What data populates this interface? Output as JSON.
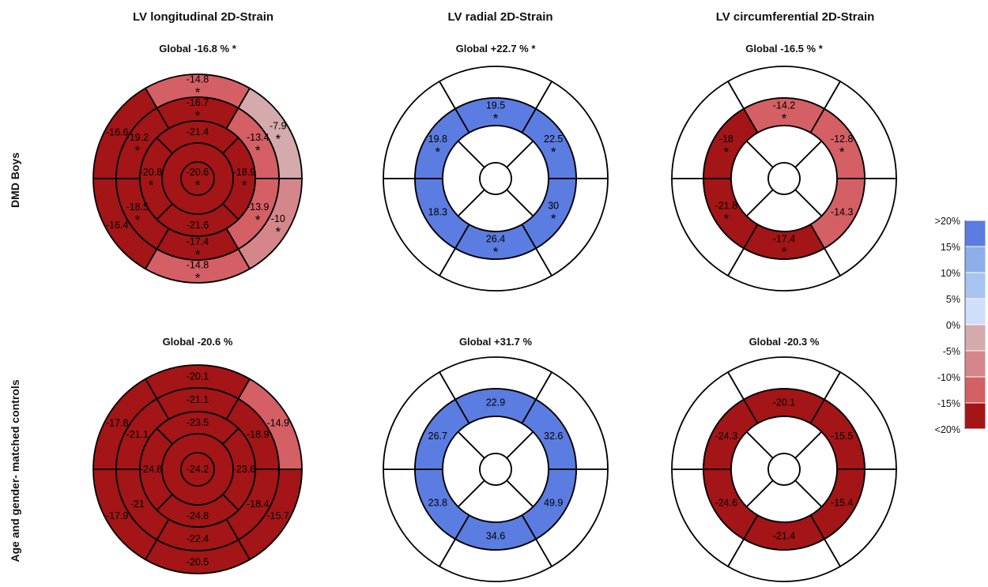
{
  "column_titles": [
    "LV longitudinal 2D-Strain",
    "LV radial 2D-Strain",
    "LV circumferential 2D-Strain"
  ],
  "row_labels": [
    "DMD Boys",
    "Age and gender- matched controls"
  ],
  "colors": {
    "lt20": "#a31516",
    "m15": "#d45f64",
    "m10": "#d4868a",
    "m5": "#d4aaac",
    "p5": "#cfdffb",
    "p10": "#a8c4f2",
    "p15": "#8caee9",
    "p20": "#5b7ce0",
    "empty": "#ffffff",
    "stroke": "#000000"
  },
  "color_scale": {
    "labels": [
      ">20%",
      "15%",
      "10%",
      "5%",
      "0%",
      "-5%",
      "-10%",
      "-15%",
      "<20%"
    ],
    "bands": [
      "p20",
      "p15",
      "p10",
      "p5",
      "m5",
      "m10",
      "m15",
      "lt20"
    ]
  },
  "plots": [
    {
      "name": "dmd-longitudinal",
      "global": "Global -16.8 % *",
      "segments": [
        {
          "id": "basal-anterior",
          "value": "-14.8",
          "star": true,
          "color": "m15"
        },
        {
          "id": "basal-anterolateral",
          "value": "-7.9",
          "star": true,
          "color": "m5"
        },
        {
          "id": "basal-inferolateral",
          "value": "-10",
          "star": true,
          "color": "m10"
        },
        {
          "id": "basal-inferior",
          "value": "-14.8",
          "star": true,
          "color": "m15"
        },
        {
          "id": "basal-inferoseptal",
          "value": "-16.4",
          "star": false,
          "color": "lt20"
        },
        {
          "id": "basal-anteroseptal",
          "value": "-16.6",
          "star": false,
          "color": "lt20"
        },
        {
          "id": "mid-anterior",
          "value": "-16.7",
          "star": true,
          "color": "lt20"
        },
        {
          "id": "mid-anterolateral",
          "value": "-13.4",
          "star": true,
          "color": "m15"
        },
        {
          "id": "mid-inferolateral",
          "value": "-13.9",
          "star": true,
          "color": "m15"
        },
        {
          "id": "mid-inferior",
          "value": "-17.4",
          "star": true,
          "color": "lt20"
        },
        {
          "id": "mid-inferoseptal",
          "value": "-18.5",
          "star": true,
          "color": "lt20"
        },
        {
          "id": "mid-anteroseptal",
          "value": "-19.2",
          "star": true,
          "color": "lt20"
        },
        {
          "id": "apical-anterior",
          "value": "-21.4",
          "star": false,
          "color": "lt20"
        },
        {
          "id": "apical-lateral",
          "value": "-18.9",
          "star": true,
          "color": "lt20"
        },
        {
          "id": "apical-inferior",
          "value": "-21.6",
          "star": false,
          "color": "lt20"
        },
        {
          "id": "apical-septal",
          "value": "-20.8",
          "star": true,
          "color": "lt20"
        },
        {
          "id": "apex",
          "value": "-20.6",
          "star": true,
          "color": "lt20"
        }
      ]
    },
    {
      "name": "dmd-radial",
      "global": "Global +22.7 % *",
      "segments": [
        {
          "id": "basal-anterior",
          "value": "",
          "star": false,
          "color": "empty"
        },
        {
          "id": "basal-anterolateral",
          "value": "",
          "star": false,
          "color": "empty"
        },
        {
          "id": "basal-inferolateral",
          "value": "",
          "star": false,
          "color": "empty"
        },
        {
          "id": "basal-inferior",
          "value": "",
          "star": false,
          "color": "empty"
        },
        {
          "id": "basal-inferoseptal",
          "value": "",
          "star": false,
          "color": "empty"
        },
        {
          "id": "basal-anteroseptal",
          "value": "",
          "star": false,
          "color": "empty"
        },
        {
          "id": "mid-anterior",
          "value": "19.5",
          "star": true,
          "color": "p20"
        },
        {
          "id": "mid-anterolateral",
          "value": "22.5",
          "star": true,
          "color": "p20"
        },
        {
          "id": "mid-inferolateral",
          "value": "30",
          "star": true,
          "color": "p20"
        },
        {
          "id": "mid-inferior",
          "value": "26.4",
          "star": true,
          "color": "p20"
        },
        {
          "id": "mid-inferoseptal",
          "value": "18.3",
          "star": false,
          "color": "p20"
        },
        {
          "id": "mid-anteroseptal",
          "value": "19.8",
          "star": true,
          "color": "p20"
        },
        {
          "id": "apical-anterior",
          "value": "",
          "star": false,
          "color": "empty"
        },
        {
          "id": "apical-lateral",
          "value": "",
          "star": false,
          "color": "empty"
        },
        {
          "id": "apical-inferior",
          "value": "",
          "star": false,
          "color": "empty"
        },
        {
          "id": "apical-septal",
          "value": "",
          "star": false,
          "color": "empty"
        },
        {
          "id": "apex",
          "value": "",
          "star": false,
          "color": "empty"
        }
      ]
    },
    {
      "name": "dmd-circumferential",
      "global": "Global -16.5 % *",
      "segments": [
        {
          "id": "basal-anterior",
          "value": "",
          "star": false,
          "color": "empty"
        },
        {
          "id": "basal-anterolateral",
          "value": "",
          "star": false,
          "color": "empty"
        },
        {
          "id": "basal-inferolateral",
          "value": "",
          "star": false,
          "color": "empty"
        },
        {
          "id": "basal-inferior",
          "value": "",
          "star": false,
          "color": "empty"
        },
        {
          "id": "basal-inferoseptal",
          "value": "",
          "star": false,
          "color": "empty"
        },
        {
          "id": "basal-anteroseptal",
          "value": "",
          "star": false,
          "color": "empty"
        },
        {
          "id": "mid-anterior",
          "value": "-14.2",
          "star": true,
          "color": "m15"
        },
        {
          "id": "mid-anterolateral",
          "value": "-12.8",
          "star": true,
          "color": "m15"
        },
        {
          "id": "mid-inferolateral",
          "value": "-14.3",
          "star": false,
          "color": "m15"
        },
        {
          "id": "mid-inferior",
          "value": "-17.4",
          "star": true,
          "color": "lt20"
        },
        {
          "id": "mid-inferoseptal",
          "value": "-21.8",
          "star": true,
          "color": "lt20"
        },
        {
          "id": "mid-anteroseptal",
          "value": "-18",
          "star": true,
          "color": "lt20"
        },
        {
          "id": "apical-anterior",
          "value": "",
          "star": false,
          "color": "empty"
        },
        {
          "id": "apical-lateral",
          "value": "",
          "star": false,
          "color": "empty"
        },
        {
          "id": "apical-inferior",
          "value": "",
          "star": false,
          "color": "empty"
        },
        {
          "id": "apical-septal",
          "value": "",
          "star": false,
          "color": "empty"
        },
        {
          "id": "apex",
          "value": "",
          "star": false,
          "color": "empty"
        }
      ]
    },
    {
      "name": "control-longitudinal",
      "global": "Global -20.6 %",
      "segments": [
        {
          "id": "basal-anterior",
          "value": "-20.1",
          "star": false,
          "color": "lt20"
        },
        {
          "id": "basal-anterolateral",
          "value": "-14.9",
          "star": false,
          "color": "m15"
        },
        {
          "id": "basal-inferolateral",
          "value": "-15.7",
          "star": false,
          "color": "lt20"
        },
        {
          "id": "basal-inferior",
          "value": "-20.5",
          "star": false,
          "color": "lt20"
        },
        {
          "id": "basal-inferoseptal",
          "value": "-17.9",
          "star": false,
          "color": "lt20"
        },
        {
          "id": "basal-anteroseptal",
          "value": "-17.8",
          "star": false,
          "color": "lt20"
        },
        {
          "id": "mid-anterior",
          "value": "-21.1",
          "star": false,
          "color": "lt20"
        },
        {
          "id": "mid-anterolateral",
          "value": "-18.9",
          "star": false,
          "color": "lt20"
        },
        {
          "id": "mid-inferolateral",
          "value": "-18.4",
          "star": false,
          "color": "lt20"
        },
        {
          "id": "mid-inferior",
          "value": "-22.4",
          "star": false,
          "color": "lt20"
        },
        {
          "id": "mid-inferoseptal",
          "value": "-21",
          "star": false,
          "color": "lt20"
        },
        {
          "id": "mid-anteroseptal",
          "value": "-21.1",
          "star": false,
          "color": "lt20"
        },
        {
          "id": "apical-anterior",
          "value": "-23.5",
          "star": false,
          "color": "lt20"
        },
        {
          "id": "apical-lateral",
          "value": "-23.6",
          "star": false,
          "color": "lt20"
        },
        {
          "id": "apical-inferior",
          "value": "-24.8",
          "star": false,
          "color": "lt20"
        },
        {
          "id": "apical-septal",
          "value": "-24.8",
          "star": false,
          "color": "lt20"
        },
        {
          "id": "apex",
          "value": "-24.2",
          "star": false,
          "color": "lt20"
        }
      ]
    },
    {
      "name": "control-radial",
      "global": "Global +31.7 %",
      "segments": [
        {
          "id": "basal-anterior",
          "value": "",
          "star": false,
          "color": "empty"
        },
        {
          "id": "basal-anterolateral",
          "value": "",
          "star": false,
          "color": "empty"
        },
        {
          "id": "basal-inferolateral",
          "value": "",
          "star": false,
          "color": "empty"
        },
        {
          "id": "basal-inferior",
          "value": "",
          "star": false,
          "color": "empty"
        },
        {
          "id": "basal-inferoseptal",
          "value": "",
          "star": false,
          "color": "empty"
        },
        {
          "id": "basal-anteroseptal",
          "value": "",
          "star": false,
          "color": "empty"
        },
        {
          "id": "mid-anterior",
          "value": "22.9",
          "star": false,
          "color": "p20"
        },
        {
          "id": "mid-anterolateral",
          "value": "32.6",
          "star": false,
          "color": "p20"
        },
        {
          "id": "mid-inferolateral",
          "value": "49.9",
          "star": false,
          "color": "p20"
        },
        {
          "id": "mid-inferior",
          "value": "34.6",
          "star": false,
          "color": "p20"
        },
        {
          "id": "mid-inferoseptal",
          "value": "23.8",
          "star": false,
          "color": "p20"
        },
        {
          "id": "mid-anteroseptal",
          "value": "26.7",
          "star": false,
          "color": "p20"
        },
        {
          "id": "apical-anterior",
          "value": "",
          "star": false,
          "color": "empty"
        },
        {
          "id": "apical-lateral",
          "value": "",
          "star": false,
          "color": "empty"
        },
        {
          "id": "apical-inferior",
          "value": "",
          "star": false,
          "color": "empty"
        },
        {
          "id": "apical-septal",
          "value": "",
          "star": false,
          "color": "empty"
        },
        {
          "id": "apex",
          "value": "",
          "star": false,
          "color": "empty"
        }
      ]
    },
    {
      "name": "control-circumferential",
      "global": "Global -20.3 %",
      "segments": [
        {
          "id": "basal-anterior",
          "value": "",
          "star": false,
          "color": "empty"
        },
        {
          "id": "basal-anterolateral",
          "value": "",
          "star": false,
          "color": "empty"
        },
        {
          "id": "basal-inferolateral",
          "value": "",
          "star": false,
          "color": "empty"
        },
        {
          "id": "basal-inferior",
          "value": "",
          "star": false,
          "color": "empty"
        },
        {
          "id": "basal-inferoseptal",
          "value": "",
          "star": false,
          "color": "empty"
        },
        {
          "id": "basal-anteroseptal",
          "value": "",
          "star": false,
          "color": "empty"
        },
        {
          "id": "mid-anterior",
          "value": "-20.1",
          "star": false,
          "color": "lt20"
        },
        {
          "id": "mid-anterolateral",
          "value": "-15.5",
          "star": false,
          "color": "lt20"
        },
        {
          "id": "mid-inferolateral",
          "value": "-15.4",
          "star": false,
          "color": "lt20"
        },
        {
          "id": "mid-inferior",
          "value": "-21.4",
          "star": false,
          "color": "lt20"
        },
        {
          "id": "mid-inferoseptal",
          "value": "-24.6",
          "star": false,
          "color": "lt20"
        },
        {
          "id": "mid-anteroseptal",
          "value": "-24.3",
          "star": false,
          "color": "lt20"
        },
        {
          "id": "apical-anterior",
          "value": "",
          "star": false,
          "color": "empty"
        },
        {
          "id": "apical-lateral",
          "value": "",
          "star": false,
          "color": "empty"
        },
        {
          "id": "apical-inferior",
          "value": "",
          "star": false,
          "color": "empty"
        },
        {
          "id": "apical-septal",
          "value": "",
          "star": false,
          "color": "empty"
        },
        {
          "id": "apex",
          "value": "",
          "star": false,
          "color": "empty"
        }
      ]
    }
  ]
}
